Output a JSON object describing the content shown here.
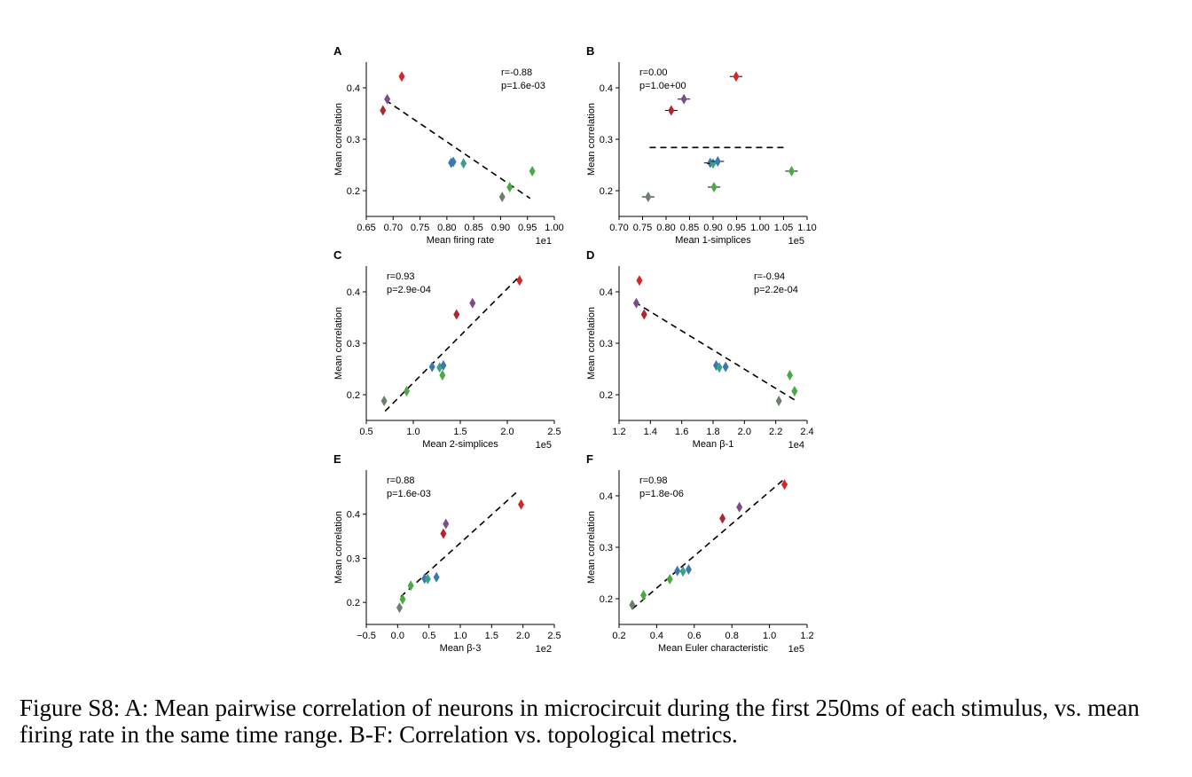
{
  "caption": "Figure S8: A: Mean pairwise correlation of neurons in microcircuit during the first 250ms of each stimulus, vs. mean firing rate in the same time range. B-F: Correlation vs. topological metrics.",
  "colors": {
    "red": "#d62728",
    "darkred": "#b2262e",
    "purple": "#7d4b8e",
    "blue": "#3b78b0",
    "teal": "#3aa08a",
    "green": "#4caa43",
    "gray": "#6e7f6e",
    "line": "#000000"
  },
  "chart_data": [
    {
      "panel": "A",
      "type": "scatter",
      "xlabel": "Mean firing rate",
      "ylabel": "Mean correlation",
      "xscale_label": "1e1",
      "stat_r": "r=-0.88",
      "stat_p": "p=1.6e-03",
      "stat_pos": "top-right",
      "xlim": [
        0.65,
        1.0
      ],
      "ylim": [
        0.15,
        0.45
      ],
      "xticks": [
        0.65,
        0.7,
        0.75,
        0.8,
        0.85,
        0.9,
        0.95,
        1.0
      ],
      "xtick_labels": [
        "0.65",
        "0.70",
        "0.75",
        "0.80",
        "0.85",
        "0.90",
        "0.95",
        "1.00"
      ],
      "yticks": [
        0.2,
        0.3,
        0.4
      ],
      "ytick_labels": [
        "0.2",
        "0.3",
        "0.4"
      ],
      "points": [
        {
          "x": 0.716,
          "y": 0.422,
          "c": "red"
        },
        {
          "x": 0.689,
          "y": 0.378,
          "c": "purple"
        },
        {
          "x": 0.681,
          "y": 0.356,
          "c": "darkred"
        },
        {
          "x": 0.808,
          "y": 0.254,
          "c": "blue"
        },
        {
          "x": 0.812,
          "y": 0.256,
          "c": "blue"
        },
        {
          "x": 0.831,
          "y": 0.253,
          "c": "teal"
        },
        {
          "x": 0.959,
          "y": 0.238,
          "c": "green"
        },
        {
          "x": 0.917,
          "y": 0.207,
          "c": "green"
        },
        {
          "x": 0.903,
          "y": 0.188,
          "c": "gray"
        }
      ],
      "fit": [
        [
          0.686,
          0.376
        ],
        [
          0.955,
          0.185
        ]
      ]
    },
    {
      "panel": "B",
      "type": "scatter",
      "xlabel": "Mean 1-simplices",
      "ylabel": "Mean correlation",
      "xscale_label": "1e5",
      "stat_r": "r=0.00",
      "stat_p": "p=1.0e+00",
      "stat_pos": "top-left",
      "xlim": [
        0.7,
        1.1
      ],
      "ylim": [
        0.15,
        0.45
      ],
      "xticks": [
        0.7,
        0.75,
        0.8,
        0.85,
        0.9,
        0.95,
        1.0,
        1.05,
        1.1
      ],
      "xtick_labels": [
        "0.70",
        "0.75",
        "0.80",
        "0.85",
        "0.90",
        "0.95",
        "1.00",
        "1.05",
        "1.10"
      ],
      "yticks": [
        0.2,
        0.3,
        0.4
      ],
      "ytick_labels": [
        "0.2",
        "0.3",
        "0.4"
      ],
      "points": [
        {
          "x": 0.949,
          "y": 0.422,
          "c": "red"
        },
        {
          "x": 0.838,
          "y": 0.378,
          "c": "purple"
        },
        {
          "x": 0.811,
          "y": 0.356,
          "c": "darkred"
        },
        {
          "x": 0.894,
          "y": 0.254,
          "c": "blue"
        },
        {
          "x": 0.9,
          "y": 0.253,
          "c": "teal"
        },
        {
          "x": 0.91,
          "y": 0.257,
          "c": "blue"
        },
        {
          "x": 1.067,
          "y": 0.238,
          "c": "green"
        },
        {
          "x": 0.902,
          "y": 0.207,
          "c": "green"
        },
        {
          "x": 0.762,
          "y": 0.188,
          "c": "gray"
        }
      ],
      "fit": [
        [
          0.765,
          0.284
        ],
        [
          1.055,
          0.284
        ]
      ]
    },
    {
      "panel": "C",
      "type": "scatter",
      "xlabel": "Mean 2-simplices",
      "ylabel": "Mean correlation",
      "xscale_label": "1e5",
      "stat_r": "r=0.93",
      "stat_p": "p=2.9e-04",
      "stat_pos": "top-left",
      "xlim": [
        0.5,
        2.5
      ],
      "ylim": [
        0.15,
        0.45
      ],
      "xticks": [
        0.5,
        1.0,
        1.5,
        2.0,
        2.5
      ],
      "xtick_labels": [
        "0.5",
        "1.0",
        "1.5",
        "2.0",
        "2.5"
      ],
      "yticks": [
        0.2,
        0.3,
        0.4
      ],
      "ytick_labels": [
        "0.2",
        "0.3",
        "0.4"
      ],
      "points": [
        {
          "x": 2.13,
          "y": 0.422,
          "c": "red"
        },
        {
          "x": 1.63,
          "y": 0.378,
          "c": "purple"
        },
        {
          "x": 1.46,
          "y": 0.356,
          "c": "darkred"
        },
        {
          "x": 1.2,
          "y": 0.254,
          "c": "blue"
        },
        {
          "x": 1.28,
          "y": 0.253,
          "c": "teal"
        },
        {
          "x": 1.32,
          "y": 0.257,
          "c": "blue"
        },
        {
          "x": 1.31,
          "y": 0.238,
          "c": "green"
        },
        {
          "x": 0.93,
          "y": 0.207,
          "c": "green"
        },
        {
          "x": 0.69,
          "y": 0.188,
          "c": "gray"
        }
      ],
      "fit": [
        [
          0.7,
          0.168
        ],
        [
          2.14,
          0.432
        ]
      ]
    },
    {
      "panel": "D",
      "type": "scatter",
      "xlabel": "Mean β-1",
      "ylabel": "Mean correlation",
      "xscale_label": "1e4",
      "stat_r": "r=-0.94",
      "stat_p": "p=2.2e-04",
      "stat_pos": "top-right",
      "xlim": [
        1.2,
        2.4
      ],
      "ylim": [
        0.15,
        0.45
      ],
      "xticks": [
        1.2,
        1.4,
        1.6,
        1.8,
        2.0,
        2.2,
        2.4
      ],
      "xtick_labels": [
        "1.2",
        "1.4",
        "1.6",
        "1.8",
        "2.0",
        "2.2",
        "2.4"
      ],
      "yticks": [
        0.2,
        0.3,
        0.4
      ],
      "ytick_labels": [
        "0.2",
        "0.3",
        "0.4"
      ],
      "points": [
        {
          "x": 1.33,
          "y": 0.422,
          "c": "red"
        },
        {
          "x": 1.31,
          "y": 0.378,
          "c": "purple"
        },
        {
          "x": 1.36,
          "y": 0.356,
          "c": "darkred"
        },
        {
          "x": 1.82,
          "y": 0.257,
          "c": "blue"
        },
        {
          "x": 1.84,
          "y": 0.253,
          "c": "teal"
        },
        {
          "x": 1.88,
          "y": 0.254,
          "c": "blue"
        },
        {
          "x": 2.29,
          "y": 0.238,
          "c": "green"
        },
        {
          "x": 2.32,
          "y": 0.207,
          "c": "green"
        },
        {
          "x": 2.22,
          "y": 0.188,
          "c": "gray"
        }
      ],
      "fit": [
        [
          1.3,
          0.38
        ],
        [
          2.32,
          0.19
        ]
      ]
    },
    {
      "panel": "E",
      "type": "scatter",
      "xlabel": "Mean β-3",
      "ylabel": "Mean correlation",
      "xscale_label": "1e2",
      "stat_r": "r=0.88",
      "stat_p": "p=1.6e-03",
      "stat_pos": "top-left",
      "xlim": [
        -0.5,
        2.5
      ],
      "ylim": [
        0.15,
        0.5
      ],
      "xticks": [
        -0.5,
        0.0,
        0.5,
        1.0,
        1.5,
        2.0,
        2.5
      ],
      "xtick_labels": [
        "−0.5",
        "0.0",
        "0.5",
        "1.0",
        "1.5",
        "2.0",
        "2.5"
      ],
      "yticks": [
        0.2,
        0.3,
        0.4
      ],
      "ytick_labels": [
        "0.2",
        "0.3",
        "0.4"
      ],
      "points": [
        {
          "x": 1.97,
          "y": 0.422,
          "c": "red"
        },
        {
          "x": 0.77,
          "y": 0.378,
          "c": "purple"
        },
        {
          "x": 0.73,
          "y": 0.356,
          "c": "darkred"
        },
        {
          "x": 0.43,
          "y": 0.254,
          "c": "blue"
        },
        {
          "x": 0.48,
          "y": 0.253,
          "c": "teal"
        },
        {
          "x": 0.62,
          "y": 0.257,
          "c": "blue"
        },
        {
          "x": 0.21,
          "y": 0.238,
          "c": "green"
        },
        {
          "x": 0.08,
          "y": 0.207,
          "c": "green"
        },
        {
          "x": 0.03,
          "y": 0.188,
          "c": "gray"
        }
      ],
      "fit": [
        [
          0.05,
          0.213
        ],
        [
          1.9,
          0.45
        ]
      ]
    },
    {
      "panel": "F",
      "type": "scatter",
      "xlabel": "Mean Euler characteristic",
      "ylabel": "Mean correlation",
      "xscale_label": "1e5",
      "stat_r": "r=0.98",
      "stat_p": "p=1.8e-06",
      "stat_pos": "top-left",
      "xlim": [
        0.2,
        1.2
      ],
      "ylim": [
        0.15,
        0.45
      ],
      "xticks": [
        0.2,
        0.4,
        0.6,
        0.8,
        1.0,
        1.2
      ],
      "xtick_labels": [
        "0.2",
        "0.4",
        "0.6",
        "0.8",
        "1.0",
        "1.2"
      ],
      "yticks": [
        0.2,
        0.3,
        0.4
      ],
      "ytick_labels": [
        "0.2",
        "0.3",
        "0.4"
      ],
      "points": [
        {
          "x": 1.08,
          "y": 0.422,
          "c": "red"
        },
        {
          "x": 0.84,
          "y": 0.378,
          "c": "purple"
        },
        {
          "x": 0.75,
          "y": 0.356,
          "c": "darkred"
        },
        {
          "x": 0.51,
          "y": 0.254,
          "c": "blue"
        },
        {
          "x": 0.54,
          "y": 0.253,
          "c": "teal"
        },
        {
          "x": 0.57,
          "y": 0.257,
          "c": "blue"
        },
        {
          "x": 0.47,
          "y": 0.238,
          "c": "green"
        },
        {
          "x": 0.33,
          "y": 0.207,
          "c": "green"
        },
        {
          "x": 0.27,
          "y": 0.188,
          "c": "gray"
        }
      ],
      "fit": [
        [
          0.27,
          0.18
        ],
        [
          1.08,
          0.433
        ]
      ]
    }
  ]
}
